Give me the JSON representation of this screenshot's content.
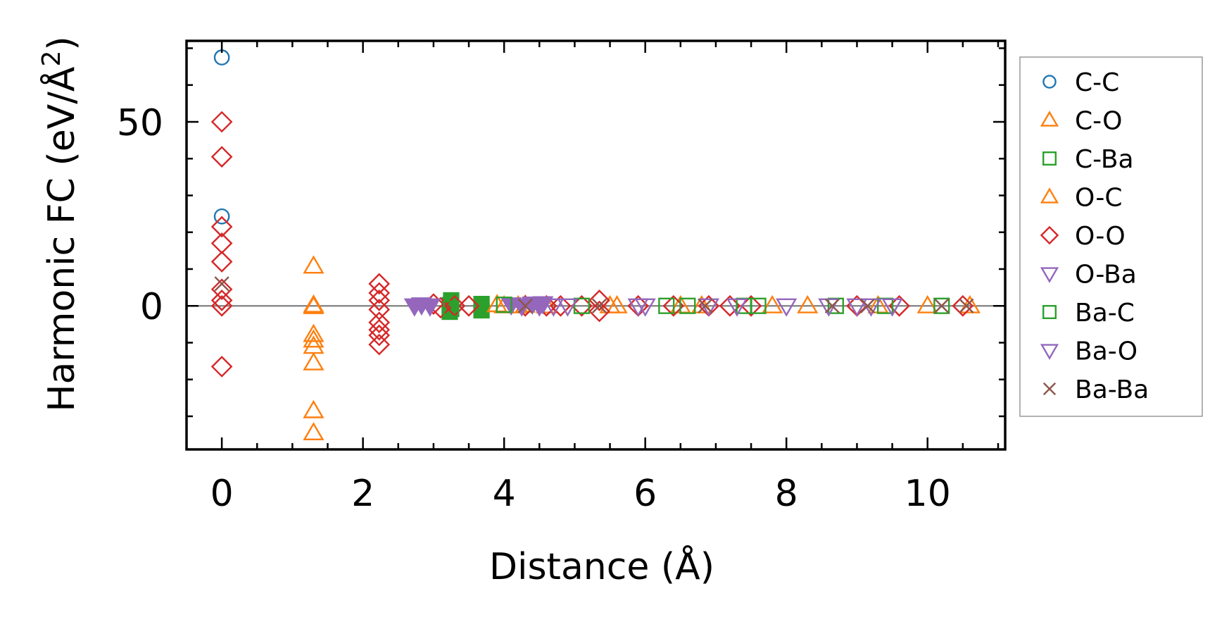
{
  "chart_data": {
    "type": "scatter",
    "title": "",
    "xlabel": "Distance (Å)",
    "ylabel": "Harmonic FC (eV/Å²)",
    "ylabel_base": "Harmonic FC (eV/Å",
    "ylabel_sup": "2",
    "ylabel_close": ")",
    "xlim": [
      -0.5,
      11.1
    ],
    "ylim": [
      -39,
      72
    ],
    "xticks": [
      0,
      2,
      4,
      6,
      8,
      10
    ],
    "yticks": [
      0,
      50
    ],
    "xtick_labels": [
      "0",
      "2",
      "4",
      "6",
      "8",
      "10"
    ],
    "ytick_labels": [
      "0",
      "50"
    ],
    "grid": false,
    "zero_line": true,
    "legend_position": "outside-right",
    "series": [
      {
        "name": "C-C",
        "marker": "circle",
        "filled": false,
        "color": "#1f77b4",
        "points": [
          [
            0,
            67.5
          ],
          [
            0,
            24.3
          ]
        ]
      },
      {
        "name": "C-O",
        "marker": "triangle-up",
        "filled": false,
        "color": "#ff7f0e",
        "points": [
          [
            1.3,
            10.8
          ],
          [
            1.3,
            0.2
          ],
          [
            1.3,
            -0.2
          ],
          [
            1.3,
            -7.8
          ],
          [
            1.3,
            -9.3
          ],
          [
            1.3,
            -11.0
          ],
          [
            1.3,
            -15.5
          ],
          [
            1.3,
            -28.5
          ],
          [
            1.3,
            -34.5
          ],
          [
            4.3,
            0.2
          ],
          [
            5.5,
            0.0
          ],
          [
            6.5,
            0.0
          ],
          [
            7.8,
            0.0
          ],
          [
            8.3,
            0.0
          ],
          [
            10.0,
            0.0
          ],
          [
            10.6,
            0.0
          ]
        ]
      },
      {
        "name": "C-Ba",
        "marker": "square",
        "filled": true,
        "color": "#2ca02c",
        "points": [
          [
            3.23,
            0.2
          ],
          [
            3.23,
            -1.6
          ],
          [
            3.68,
            0.5
          ],
          [
            3.68,
            -1.2
          ],
          [
            3.25,
            1.5
          ]
        ]
      },
      {
        "name": "O-C",
        "marker": "triangle-up",
        "filled": false,
        "color": "#ff7f0e",
        "points": [
          [
            3.9,
            0.3
          ],
          [
            4.0,
            0.0
          ],
          [
            4.2,
            0.0
          ],
          [
            4.6,
            0.0
          ],
          [
            5.6,
            0.0
          ],
          [
            6.8,
            0.0
          ],
          [
            9.3,
            0.0
          ]
        ]
      },
      {
        "name": "O-O",
        "marker": "diamond",
        "filled": false,
        "color": "#d62728",
        "points": [
          [
            0,
            50.0
          ],
          [
            0,
            40.5
          ],
          [
            0,
            21.5
          ],
          [
            0,
            17.0
          ],
          [
            0,
            12.0
          ],
          [
            0,
            4.5
          ],
          [
            0,
            1.5
          ],
          [
            0,
            0.0
          ],
          [
            0,
            -16.5
          ],
          [
            2.23,
            6.0
          ],
          [
            2.23,
            3.5
          ],
          [
            2.23,
            1.5
          ],
          [
            2.23,
            -1.0
          ],
          [
            2.23,
            -4.5
          ],
          [
            2.23,
            -6.5
          ],
          [
            2.23,
            -8.0
          ],
          [
            2.23,
            -10.5
          ],
          [
            3.0,
            0.5
          ],
          [
            3.1,
            -0.5
          ],
          [
            3.3,
            0.0
          ],
          [
            3.5,
            0.0
          ],
          [
            4.3,
            0.0
          ],
          [
            4.6,
            0.0
          ],
          [
            4.8,
            0.0
          ],
          [
            5.1,
            0.0
          ],
          [
            5.35,
            1.5
          ],
          [
            5.35,
            -1.5
          ],
          [
            5.9,
            0.0
          ],
          [
            6.4,
            0.0
          ],
          [
            6.9,
            0.0
          ],
          [
            7.2,
            0.0
          ],
          [
            7.5,
            0.0
          ],
          [
            9.0,
            0.0
          ],
          [
            9.6,
            0.0
          ],
          [
            10.5,
            0.0
          ]
        ]
      },
      {
        "name": "O-Ba",
        "marker": "triangle-down",
        "filled": true,
        "color": "#9467bd",
        "points": [
          [
            2.73,
            0.0
          ],
          [
            2.83,
            0.3
          ],
          [
            2.95,
            0.0
          ],
          [
            4.1,
            0.3
          ],
          [
            4.25,
            0.0
          ],
          [
            4.4,
            0.5
          ],
          [
            4.5,
            0.0
          ],
          [
            4.55,
            0.6
          ]
        ]
      },
      {
        "name": "Ba-C",
        "marker": "square",
        "filled": false,
        "color": "#2ca02c",
        "points": [
          [
            3.25,
            -0.8
          ],
          [
            4.0,
            0.3
          ],
          [
            5.1,
            0.0
          ],
          [
            6.3,
            0.0
          ],
          [
            6.6,
            0.0
          ],
          [
            7.4,
            0.0
          ],
          [
            7.6,
            0.0
          ],
          [
            8.7,
            0.0
          ],
          [
            9.4,
            0.0
          ],
          [
            10.2,
            0.0
          ]
        ]
      },
      {
        "name": "Ba-O",
        "marker": "triangle-down",
        "filled": false,
        "color": "#9467bd",
        "points": [
          [
            4.7,
            0.0
          ],
          [
            4.9,
            0.0
          ],
          [
            5.9,
            0.0
          ],
          [
            6.0,
            0.0
          ],
          [
            6.9,
            0.0
          ],
          [
            7.3,
            0.0
          ],
          [
            8.0,
            0.0
          ],
          [
            8.6,
            0.0
          ],
          [
            9.0,
            0.0
          ],
          [
            9.2,
            0.0
          ],
          [
            9.5,
            0.0
          ]
        ]
      },
      {
        "name": "Ba-Ba",
        "marker": "x",
        "filled": false,
        "color": "#8c564b",
        "points": [
          [
            0,
            6.0
          ],
          [
            4.3,
            0.0
          ],
          [
            5.35,
            0.0
          ],
          [
            6.85,
            0.0
          ],
          [
            8.65,
            0.0
          ],
          [
            9.15,
            0.0
          ],
          [
            10.2,
            0.0
          ],
          [
            10.55,
            0.0
          ]
        ]
      }
    ]
  }
}
